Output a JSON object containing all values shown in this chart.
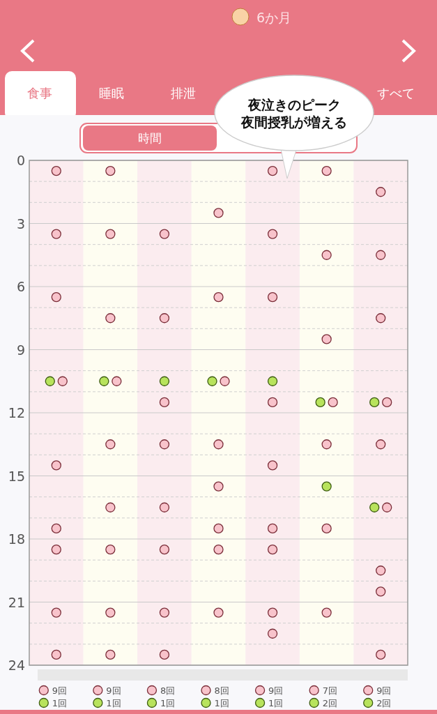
{
  "chart_data": {
    "type": "scatter",
    "title": "6か月",
    "annotations": [
      "食事",
      "睡眠",
      "排泄",
      "すべて",
      "時間",
      "夜泣きのピーク",
      "夜間授乳が増える",
      "9回",
      "9回",
      "8回",
      "8回",
      "9回",
      "7回",
      "9回",
      "1回",
      "1回",
      "1回",
      "1回",
      "1回",
      "2回",
      "2回"
    ],
    "categories": [
      null,
      null,
      null,
      null,
      null,
      null,
      null
    ],
    "ylim": [
      24,
      0
    ],
    "yticks": [
      0,
      3,
      6,
      9,
      12,
      15,
      18,
      21,
      24
    ],
    "tick_labels": "y",
    "grid": "y",
    "marker": "circle",
    "series": [
      {
        "color": "#f8c3cb",
        "values": [
          0.5,
          0.5,
          3.5,
          2.5,
          0.5,
          0.5,
          1.5
        ]
      },
      {
        "color": "#f8c3cb",
        "values": [
          3.5,
          3.5,
          7.5,
          6.5,
          3.5,
          4.5,
          4.5
        ]
      },
      {
        "color": "#f8c3cb",
        "values": [
          6.5,
          7.5,
          11.5,
          10.5,
          6.5,
          8.5,
          7.5
        ]
      },
      {
        "color": "#f8c3cb",
        "values": [
          10.5,
          10.5,
          13.5,
          13.5,
          11.5,
          11.5,
          11.5
        ]
      },
      {
        "color": "#f8c3cb",
        "values": [
          14.5,
          13.5,
          16.5,
          15.5,
          14.5,
          13.5,
          13.5
        ]
      },
      {
        "color": "#f8c3cb",
        "values": [
          17.5,
          16.5,
          18.5,
          17.5,
          17.5,
          17.5,
          16.5
        ]
      },
      {
        "color": "#f8c3cb",
        "values": [
          18.5,
          18.5,
          21.5,
          18.5,
          18.5,
          21.5,
          19.5
        ]
      },
      {
        "color": "#f8c3cb",
        "values": [
          21.5,
          21.5,
          23.5,
          21.5,
          21.5,
          null,
          20.5
        ]
      },
      {
        "color": "#f8c3cb",
        "values": [
          23.5,
          23.5,
          null,
          null,
          22.5,
          null,
          23.5
        ]
      },
      {
        "color": "#b8e35c",
        "values": [
          10.5,
          10.5,
          10.5,
          10.5,
          10.5,
          11.5,
          11.5
        ]
      },
      {
        "color": "#b8e35c",
        "values": [
          null,
          null,
          null,
          null,
          null,
          15.5,
          16.5
        ]
      }
    ]
  }
}
